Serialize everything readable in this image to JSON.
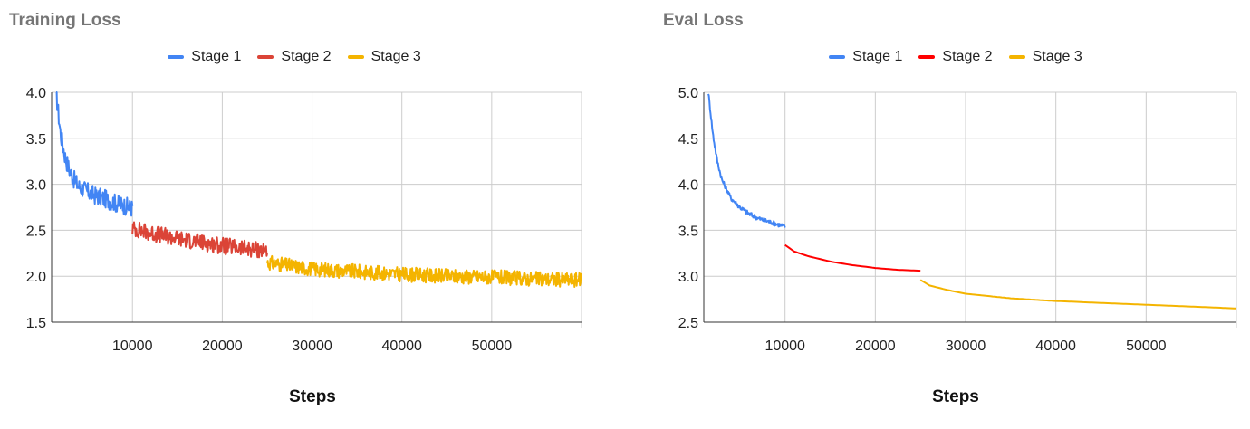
{
  "chart_data": [
    {
      "type": "line",
      "title": "Training Loss",
      "xlabel": "Steps",
      "ylabel": "",
      "xlim": [
        1000,
        60000
      ],
      "ylim": [
        1.5,
        4.0
      ],
      "xticks": [
        10000,
        20000,
        30000,
        40000,
        50000
      ],
      "yticks": [
        "4.0",
        "3.5",
        "3.0",
        "2.5",
        "2.0",
        "1.5"
      ],
      "grid": true,
      "legend_position": "top-center",
      "series": [
        {
          "name": "Stage 1",
          "color": "#4285F4",
          "x": [
            1500,
            2000,
            2500,
            3000,
            3500,
            4000,
            5000,
            6000,
            7000,
            8000,
            9000,
            10000
          ],
          "y": [
            4.0,
            3.55,
            3.3,
            3.15,
            3.05,
            2.98,
            2.92,
            2.87,
            2.84,
            2.8,
            2.77,
            2.74
          ],
          "noise": 0.1
        },
        {
          "name": "Stage 2",
          "color": "#DB4437",
          "x": [
            10000,
            12500,
            15000,
            17500,
            20000,
            22500,
            25000
          ],
          "y": [
            2.52,
            2.46,
            2.41,
            2.37,
            2.33,
            2.3,
            2.28
          ],
          "noise": 0.09
        },
        {
          "name": "Stage 3",
          "color": "#F4B400",
          "x": [
            25000,
            30000,
            35000,
            40000,
            45000,
            50000,
            55000,
            60000
          ],
          "y": [
            2.15,
            2.08,
            2.05,
            2.02,
            2.0,
            1.99,
            1.97,
            1.96
          ],
          "noise": 0.08
        }
      ]
    },
    {
      "type": "line",
      "title": "Eval Loss",
      "xlabel": "Steps",
      "ylabel": "",
      "xlim": [
        1000,
        60000
      ],
      "ylim": [
        2.5,
        5.0
      ],
      "xticks": [
        10000,
        20000,
        30000,
        40000,
        50000
      ],
      "yticks": [
        "5.0",
        "4.5",
        "4.0",
        "3.5",
        "3.0",
        "2.5"
      ],
      "grid": true,
      "legend_position": "top-center",
      "series": [
        {
          "name": "Stage 1",
          "color": "#4285F4",
          "x": [
            1500,
            2000,
            2500,
            3000,
            3500,
            4000,
            5000,
            6000,
            7000,
            8000,
            9000,
            10000
          ],
          "y": [
            5.0,
            4.55,
            4.25,
            4.05,
            3.95,
            3.85,
            3.75,
            3.68,
            3.63,
            3.6,
            3.57,
            3.54
          ],
          "noise": 0.025
        },
        {
          "name": "Stage 2",
          "color": "#FF0000",
          "x": [
            10000,
            11000,
            12500,
            15000,
            17500,
            20000,
            22500,
            25000
          ],
          "y": [
            3.34,
            3.27,
            3.22,
            3.16,
            3.12,
            3.09,
            3.07,
            3.06
          ],
          "noise": 0
        },
        {
          "name": "Stage 3",
          "color": "#F4B400",
          "x": [
            25000,
            26000,
            28000,
            30000,
            35000,
            40000,
            45000,
            50000,
            55000,
            60000
          ],
          "y": [
            2.96,
            2.9,
            2.85,
            2.81,
            2.76,
            2.73,
            2.71,
            2.69,
            2.67,
            2.65
          ],
          "noise": 0
        }
      ]
    }
  ]
}
